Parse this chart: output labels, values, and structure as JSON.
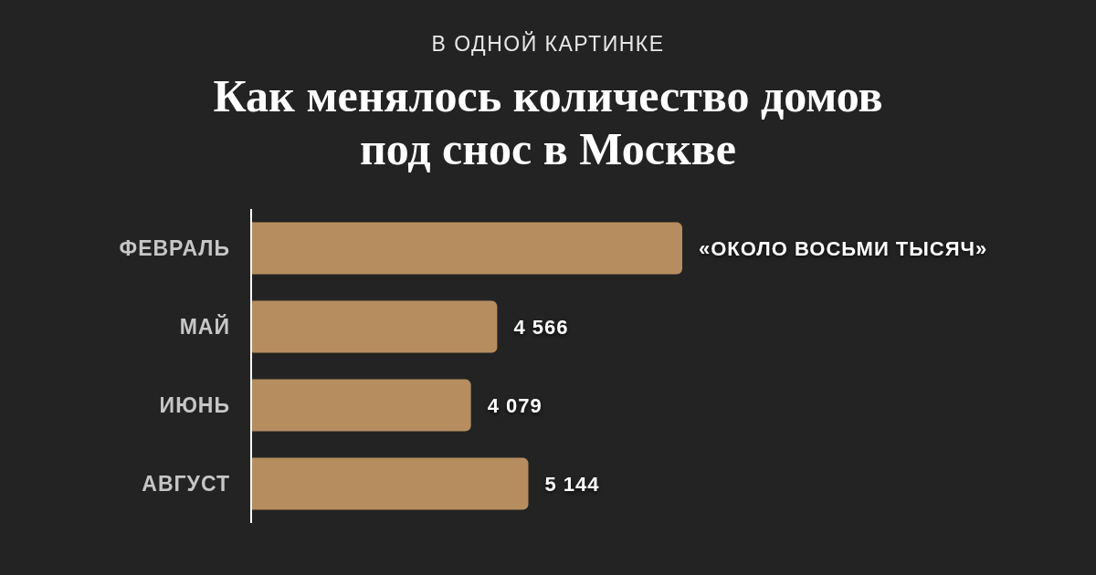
{
  "chart_data": {
    "type": "bar",
    "orientation": "horizontal",
    "subtitle": "В ОДНОЙ КАРТИНКЕ",
    "title": "Как менялось количество домов под снос в Москве",
    "categories": [
      "ФЕВРАЛЬ",
      "МАЙ",
      "ИЮНЬ",
      "АВГУСТ"
    ],
    "values": [
      8000,
      4566,
      4079,
      5144
    ],
    "value_labels": [
      "«ОКОЛО ВОСЬМИ ТЫСЯЧ»",
      "4 566",
      "4 079",
      "5 144"
    ],
    "color": "#b68d5f",
    "tick_labels": "y"
  }
}
